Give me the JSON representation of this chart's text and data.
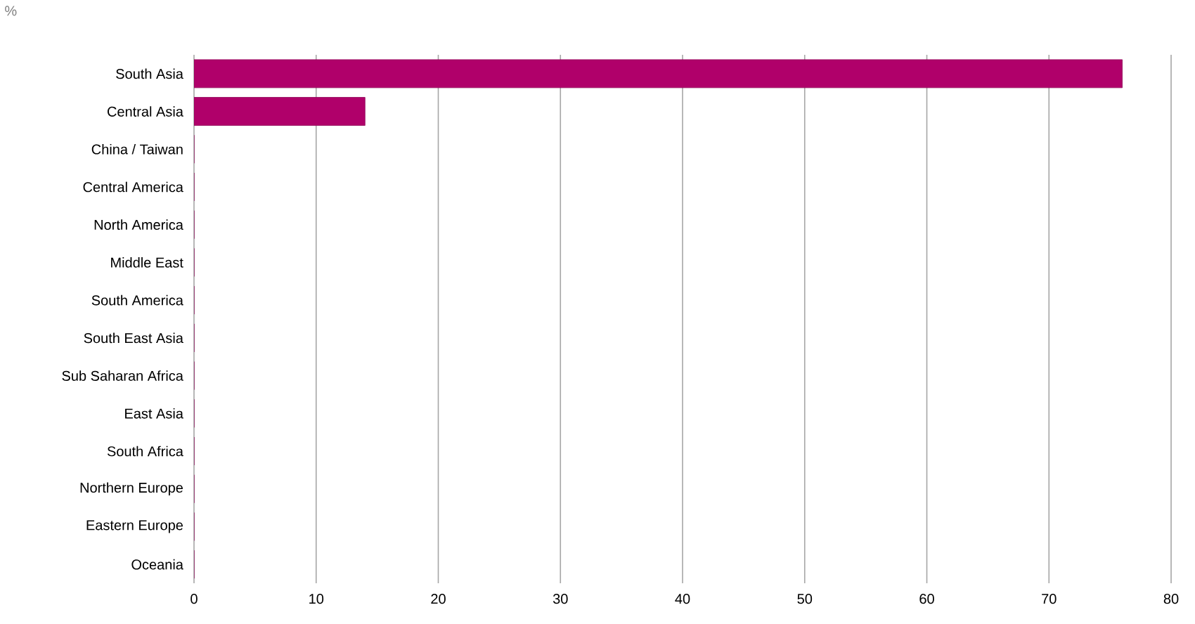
{
  "chart_data": {
    "type": "bar",
    "orientation": "horizontal",
    "xlabel": "%",
    "categories": [
      "South Asia",
      "Central Asia",
      "China / Taiwan",
      "Central America",
      "North America",
      "Middle East",
      "South America",
      "South East Asia",
      "Sub Saharan Africa",
      "East Asia",
      "South Africa",
      "Northern Europe",
      "Eastern Europe",
      "Oceania"
    ],
    "values": [
      76,
      14,
      0,
      0,
      0,
      0,
      0,
      0,
      0,
      0,
      0,
      0,
      0,
      0
    ],
    "color": "#b0006a",
    "xlim": [
      0,
      80
    ],
    "xticks": [
      0,
      10,
      20,
      30,
      40,
      50,
      60,
      70,
      80
    ],
    "grid": "x"
  }
}
